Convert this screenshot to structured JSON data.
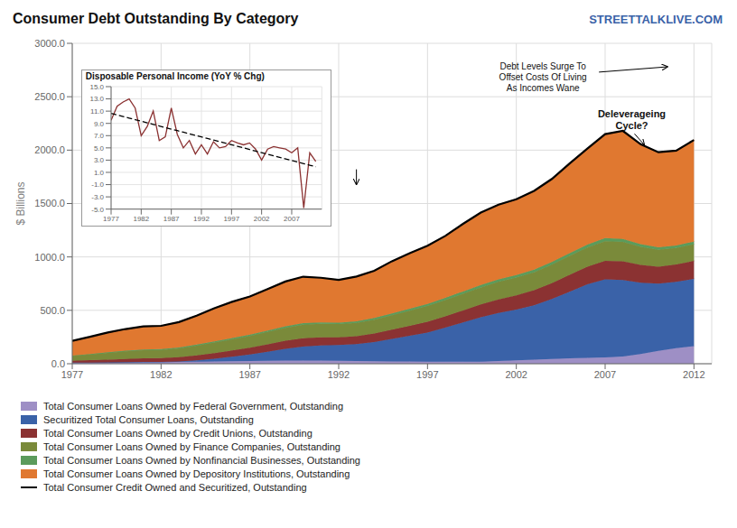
{
  "chart_data": [
    {
      "type": "area",
      "stacked": true,
      "title": "Consumer Debt Outstanding By Category",
      "subtitle": "STREETTALKLIVE.COM",
      "y_label": "$ Billions",
      "x": [
        1977,
        1978,
        1979,
        1980,
        1981,
        1982,
        1983,
        1984,
        1985,
        1986,
        1987,
        1988,
        1989,
        1990,
        1991,
        1992,
        1993,
        1994,
        1995,
        1996,
        1997,
        1998,
        1999,
        2000,
        2001,
        2002,
        2003,
        2004,
        2005,
        2006,
        2007,
        2008,
        2009,
        2010,
        2011,
        2012
      ],
      "xlim": [
        1977,
        2013
      ],
      "xticks": [
        1977,
        1982,
        1987,
        1992,
        1997,
        2002,
        2007,
        2012
      ],
      "ylim": [
        0,
        3000
      ],
      "yticks": [
        {
          "value": 0,
          "label": "0.0"
        },
        {
          "value": 500,
          "label": "500.0"
        },
        {
          "value": 1000,
          "label": "1000.0"
        },
        {
          "value": 1500,
          "label": "1500.0"
        },
        {
          "value": 2000,
          "label": "2000.0"
        },
        {
          "value": 2500,
          "label": "2500.0"
        },
        {
          "value": 3000,
          "label": "3000.0"
        }
      ],
      "grid": true,
      "legend": "bottom",
      "series": [
        {
          "name": "Total Consumer Loans Owned by Federal Government, Outstanding",
          "type": "area",
          "color": "#9e8fc5",
          "values": [
            10,
            11,
            12,
            14,
            16,
            17,
            18,
            20,
            22,
            24,
            25,
            27,
            29,
            30,
            29,
            27,
            25,
            23,
            22,
            21,
            20,
            19,
            19,
            20,
            25,
            32,
            38,
            44,
            50,
            55,
            60,
            68,
            90,
            120,
            145,
            165
          ]
        },
        {
          "name": "Securitized Total Consumer Loans, Outstanding",
          "type": "area",
          "color": "#3a62a8",
          "values": [
            0,
            0,
            0,
            0,
            0,
            0,
            4,
            12,
            25,
            42,
            62,
            85,
            110,
            130,
            142,
            148,
            158,
            180,
            210,
            240,
            272,
            318,
            367,
            415,
            450,
            476,
            510,
            562,
            625,
            688,
            730,
            715,
            668,
            630,
            622,
            630
          ]
        },
        {
          "name": "Total Consumer Loans Owned by Credit Unions, Outstanding",
          "type": "area",
          "color": "#8b3232",
          "values": [
            18,
            22,
            27,
            31,
            34,
            35,
            40,
            46,
            52,
            58,
            64,
            70,
            76,
            78,
            76,
            73,
            75,
            80,
            86,
            93,
            100,
            106,
            113,
            120,
            128,
            133,
            140,
            148,
            157,
            165,
            173,
            177,
            168,
            159,
            162,
            168
          ]
        },
        {
          "name": "Total Consumer Loans Owned by Finance Companies, Outstanding",
          "type": "area",
          "color": "#7a8a3a",
          "values": [
            45,
            53,
            63,
            71,
            76,
            77,
            82,
            91,
            99,
            104,
            109,
            115,
            121,
            128,
            126,
            123,
            125,
            130,
            136,
            142,
            148,
            152,
            156,
            160,
            163,
            165,
            168,
            173,
            177,
            181,
            185,
            181,
            168,
            157,
            154,
            156
          ]
        },
        {
          "name": "Total Consumer Loans Owned by Nonfinancial Businesses, Outstanding",
          "type": "area",
          "color": "#5b9b5b",
          "values": [
            4,
            5,
            6,
            7,
            7,
            8,
            9,
            10,
            11,
            12,
            13,
            14,
            15,
            15,
            14,
            14,
            14,
            15,
            17,
            19,
            20,
            21,
            22,
            23,
            24,
            24,
            25,
            26,
            26,
            27,
            28,
            28,
            26,
            24,
            24,
            25
          ]
        },
        {
          "name": "Total Consumer Loans Owned by Depository Institutions, Outstanding",
          "type": "area",
          "color": "#e07830",
          "values": [
            138,
            158,
            183,
            202,
            215,
            218,
            237,
            270,
            310,
            340,
            357,
            388,
            419,
            433,
            418,
            400,
            416,
            442,
            488,
            520,
            545,
            581,
            633,
            677,
            700,
            710,
            737,
            777,
            840,
            900,
            974,
            1011,
            935,
            890,
            888,
            951
          ]
        },
        {
          "name": "Total Consumer Credit Owned and Securitized, Outstanding",
          "type": "line",
          "color": "#000000",
          "values": [
            215,
            252,
            293,
            325,
            350,
            355,
            390,
            450,
            520,
            580,
            630,
            700,
            770,
            815,
            805,
            785,
            817,
            870,
            960,
            1035,
            1105,
            1197,
            1310,
            1415,
            1490,
            1540,
            1618,
            1730,
            1875,
            2015,
            2150,
            2180,
            2055,
            1980,
            1995,
            2095
          ]
        }
      ],
      "annotations": [
        "Debt Levels Surge To\nOffset Costs Of Living\nAs Incomes Wane",
        "Deleverageing\nCycle?"
      ]
    },
    {
      "type": "line",
      "title": "Disposable Personal Income (YoY % Chg)",
      "x": [
        1977,
        1978,
        1979,
        1980,
        1981,
        1982,
        1983,
        1984,
        1985,
        1986,
        1987,
        1988,
        1989,
        1990,
        1991,
        1992,
        1993,
        1994,
        1995,
        1996,
        1997,
        1998,
        1999,
        2000,
        2001,
        2002,
        2003,
        2004,
        2005,
        2006,
        2007,
        2008,
        2009,
        2010,
        2011
      ],
      "xlim": [
        1977,
        2012
      ],
      "xticks": [
        1977,
        1982,
        1987,
        1992,
        1997,
        2002,
        2007
      ],
      "ylim": [
        -5.0,
        15.0
      ],
      "yticks": [
        {
          "value": -5.0,
          "label": "-5.0"
        },
        {
          "value": -3.0,
          "label": "-3.0"
        },
        {
          "value": -1.0,
          "label": "-1.0"
        },
        {
          "value": 1.0,
          "label": "1.0"
        },
        {
          "value": 3.0,
          "label": "3.0"
        },
        {
          "value": 5.0,
          "label": "5.0"
        },
        {
          "value": 7.0,
          "label": "7.0"
        },
        {
          "value": 9.0,
          "label": "9.0"
        },
        {
          "value": 11.0,
          "label": "11.0"
        },
        {
          "value": 13.0,
          "label": "13.0"
        },
        {
          "value": 15.0,
          "label": "15.0"
        }
      ],
      "grid": true,
      "series": [
        {
          "color": "#8b3232",
          "line_style": "solid",
          "values": [
            9.5,
            11.8,
            12.5,
            13.0,
            11.5,
            7.0,
            8.5,
            11.0,
            6.2,
            6.8,
            11.5,
            7.2,
            5.0,
            6.2,
            4.0,
            5.5,
            4.0,
            6.0,
            5.0,
            5.2,
            6.2,
            5.8,
            5.5,
            5.8,
            4.8,
            3.0,
            4.8,
            5.2,
            5.0,
            4.8,
            4.2,
            5.0,
            -4.8,
            4.2,
            2.8
          ]
        },
        {
          "color": "#000000",
          "line_style": "dashed",
          "values": [
            10.6352,
            10.3789,
            10.1225,
            9.8662,
            9.6098,
            9.3534,
            9.0971,
            8.8407,
            8.5844,
            8.328,
            8.0717,
            7.8153,
            7.5589,
            7.3026,
            7.0462,
            6.7899,
            6.5335,
            6.2771,
            6.0208,
            5.7644,
            5.5081,
            5.2517,
            4.9954,
            4.739,
            4.4826,
            4.2263,
            3.9699,
            3.7136,
            3.4572,
            3.2008,
            2.9445,
            2.6881,
            2.4318,
            2.1754,
            1.919
          ]
        }
      ]
    }
  ]
}
